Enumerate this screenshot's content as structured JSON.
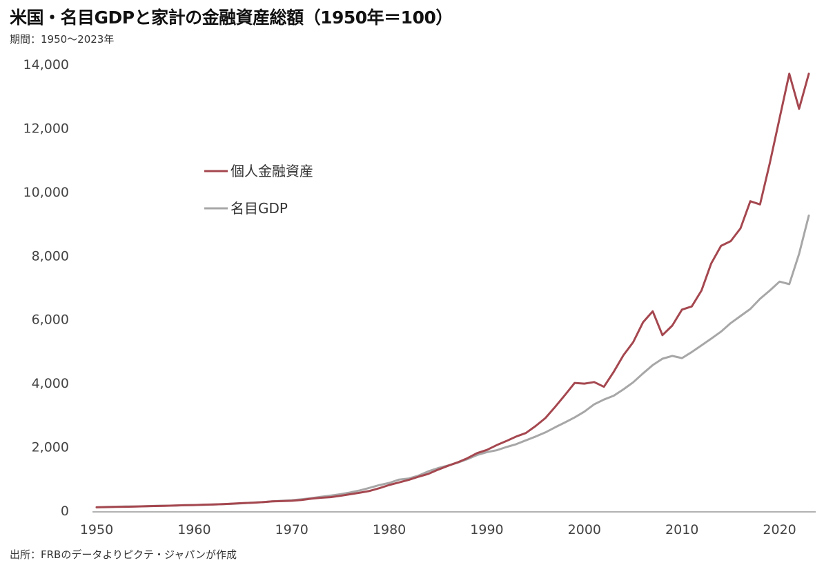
{
  "title": "米国・名目GDPと家計の金融資産総額（1950年＝100）",
  "subtitle": "期間：1950～2023年",
  "source": "出所：FRBのデータよりピクテ・ジャパンが作成",
  "colors": {
    "series_asset": "#a5474f",
    "series_gdp": "#a7a7a7",
    "axis": "#999999",
    "text": "#444444"
  },
  "chart_data": {
    "type": "line",
    "title": "米国・名目GDPと家計の金融資産総額（1950年＝100）",
    "xlabel": "",
    "ylabel": "",
    "xlim": [
      1950,
      2023
    ],
    "ylim": [
      0,
      14000
    ],
    "grid": false,
    "legend_position": "upper-left",
    "x_ticks": [
      "1950",
      "1960",
      "1970",
      "1980",
      "1990",
      "2000",
      "2010",
      "2020"
    ],
    "y_ticks": [
      "0",
      "2,000",
      "4,000",
      "6,000",
      "8,000",
      "10,000",
      "12,000",
      "14,000"
    ],
    "x": [
      1950,
      1951,
      1952,
      1953,
      1954,
      1955,
      1956,
      1957,
      1958,
      1959,
      1960,
      1961,
      1962,
      1963,
      1964,
      1965,
      1966,
      1967,
      1968,
      1969,
      1970,
      1971,
      1972,
      1973,
      1974,
      1975,
      1976,
      1977,
      1978,
      1979,
      1980,
      1981,
      1982,
      1983,
      1984,
      1985,
      1986,
      1987,
      1988,
      1989,
      1990,
      1991,
      1992,
      1993,
      1994,
      1995,
      1996,
      1997,
      1998,
      1999,
      2000,
      2001,
      2002,
      2003,
      2004,
      2005,
      2006,
      2007,
      2008,
      2009,
      2010,
      2011,
      2012,
      2013,
      2014,
      2015,
      2016,
      2017,
      2018,
      2019,
      2020,
      2021,
      2022,
      2023
    ],
    "series": [
      {
        "name": "個人金融資産",
        "values": [
          100,
          106,
          112,
          117,
          124,
          132,
          140,
          146,
          155,
          165,
          172,
          183,
          190,
          202,
          216,
          232,
          244,
          262,
          285,
          295,
          305,
          330,
          370,
          400,
          420,
          460,
          510,
          560,
          615,
          700,
          800,
          880,
          960,
          1060,
          1150,
          1280,
          1400,
          1510,
          1640,
          1800,
          1900,
          2050,
          2180,
          2320,
          2430,
          2650,
          2900,
          3250,
          3620,
          4000,
          3980,
          4030,
          3880,
          4350,
          4870,
          5280,
          5900,
          6250,
          5500,
          5800,
          6300,
          6400,
          6900,
          7750,
          8300,
          8450,
          8850,
          9700,
          9600,
          10900,
          12300,
          13700,
          12600,
          13700
        ]
      },
      {
        "name": "名目GDP",
        "values": [
          100,
          114,
          120,
          127,
          127,
          137,
          144,
          151,
          153,
          166,
          172,
          176,
          189,
          198,
          211,
          228,
          248,
          262,
          286,
          306,
          323,
          352,
          387,
          431,
          468,
          510,
          568,
          632,
          712,
          798,
          865,
          970,
          1005,
          1095,
          1230,
          1330,
          1410,
          1500,
          1610,
          1740,
          1830,
          1890,
          1990,
          2080,
          2200,
          2320,
          2450,
          2610,
          2760,
          2920,
          3100,
          3330,
          3480,
          3600,
          3800,
          4020,
          4300,
          4560,
          4760,
          4850,
          4780,
          4970,
          5180,
          5390,
          5610,
          5880,
          6100,
          6320,
          6640,
          6900,
          7180,
          7100,
          8050,
          9250
        ]
      }
    ]
  }
}
